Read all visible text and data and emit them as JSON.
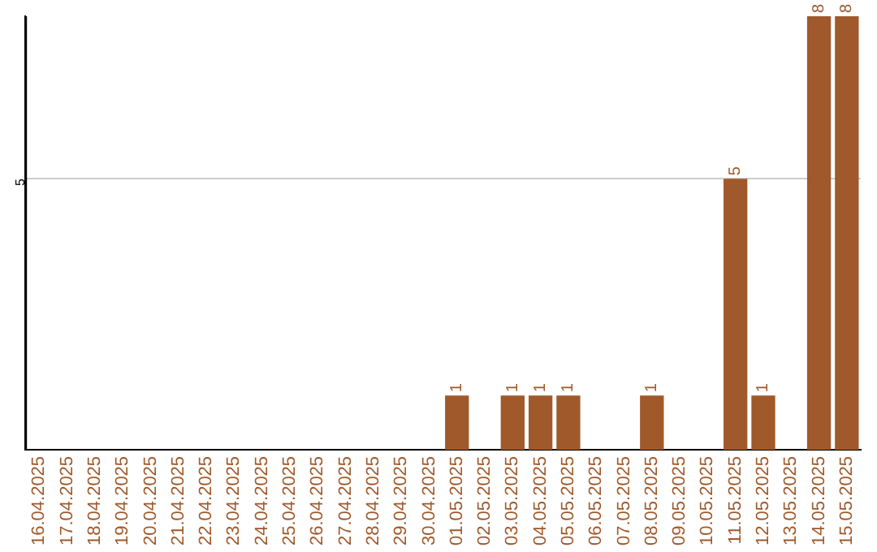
{
  "chart_data": {
    "type": "bar",
    "categories": [
      "16.04.2025",
      "17.04.2025",
      "18.04.2025",
      "19.04.2025",
      "20.04.2025",
      "21.04.2025",
      "22.04.2025",
      "23.04.2025",
      "24.04.2025",
      "25.04.2025",
      "26.04.2025",
      "27.04.2025",
      "28.04.2025",
      "29.04.2025",
      "30.04.2025",
      "01.05.2025",
      "02.05.2025",
      "03.05.2025",
      "04.05.2025",
      "05.05.2025",
      "06.05.2025",
      "07.05.2025",
      "08.05.2025",
      "09.05.2025",
      "10.05.2025",
      "11.05.2025",
      "12.05.2025",
      "13.05.2025",
      "14.05.2025",
      "15.05.2025"
    ],
    "values": [
      null,
      null,
      null,
      null,
      null,
      null,
      null,
      null,
      null,
      null,
      null,
      null,
      null,
      null,
      null,
      1,
      null,
      1,
      1,
      1,
      null,
      null,
      1,
      null,
      null,
      5,
      1,
      null,
      8,
      8
    ],
    "value_labels": [
      null,
      null,
      null,
      null,
      null,
      null,
      null,
      null,
      null,
      null,
      null,
      null,
      null,
      null,
      null,
      "1",
      null,
      "1",
      "1",
      "1",
      null,
      null,
      "1",
      null,
      null,
      "5",
      "1",
      null,
      "8",
      "8"
    ],
    "color": "#a0592a",
    "ylim": [
      0,
      8
    ],
    "yticks": [
      5
    ],
    "grid": "y",
    "legend": false
  }
}
